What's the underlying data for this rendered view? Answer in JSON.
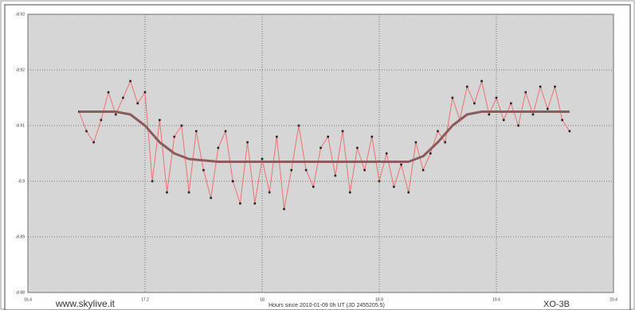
{
  "chart_data": {
    "type": "line",
    "xlabel": "Hours since 2010-01-09 0h UT (JD 2455205.5)",
    "source": "www.skylive.it",
    "label": "XO-3B",
    "xlim": [
      16.4,
      20.4
    ],
    "xticks": [
      16.4,
      17.2,
      18,
      18.8,
      19.6,
      20.4
    ],
    "ylim": [
      -8.88,
      -8.93
    ],
    "yticks": [
      -8.93,
      -8.92,
      -8.91,
      -8.9,
      -8.89,
      -8.88
    ],
    "grid": true,
    "series": [
      {
        "color": "#f07070",
        "marker_color": "#222222",
        "markers": true,
        "x": [
          16.75,
          16.8,
          16.85,
          16.9,
          16.95,
          17,
          17.05,
          17.1,
          17.15,
          17.2,
          17.25,
          17.3,
          17.35,
          17.4,
          17.45,
          17.5,
          17.55,
          17.6,
          17.65,
          17.7,
          17.75,
          17.8,
          17.85,
          17.9,
          17.95,
          18,
          18.05,
          18.1,
          18.15,
          18.2,
          18.25,
          18.3,
          18.35,
          18.4,
          18.45,
          18.5,
          18.55,
          18.6,
          18.65,
          18.7,
          18.75,
          18.8,
          18.85,
          18.9,
          18.95,
          19,
          19.05,
          19.1,
          19.15,
          19.2,
          19.25,
          19.3,
          19.35,
          19.4,
          19.45,
          19.5,
          19.55,
          19.6,
          19.65,
          19.7,
          19.75,
          19.8,
          19.85,
          19.9,
          19.95,
          20,
          20.05,
          20.1
        ],
        "values": [
          -8.9125,
          -8.909,
          -8.907,
          -8.911,
          -8.916,
          -8.912,
          -8.915,
          -8.918,
          -8.914,
          -8.916,
          -8.9,
          -8.911,
          -8.898,
          -8.908,
          -8.91,
          -8.898,
          -8.909,
          -8.902,
          -8.897,
          -8.906,
          -8.909,
          -8.9,
          -8.896,
          -8.907,
          -8.896,
          -8.904,
          -8.898,
          -8.908,
          -8.895,
          -8.902,
          -8.91,
          -8.902,
          -8.899,
          -8.906,
          -8.908,
          -8.901,
          -8.909,
          -8.898,
          -8.906,
          -8.902,
          -8.908,
          -8.9,
          -8.905,
          -8.899,
          -8.903,
          -8.898,
          -8.907,
          -8.902,
          -8.905,
          -8.909,
          -8.907,
          -8.915,
          -8.911,
          -8.917,
          -8.914,
          -8.918,
          -8.912,
          -8.915,
          -8.911,
          -8.914,
          -8.91,
          -8.916,
          -8.912,
          -8.917,
          -8.913,
          -8.917,
          -8.911,
          -8.909
        ]
      },
      {
        "color": "#8c5b5b",
        "markers": false,
        "x": [
          16.75,
          17,
          17.1,
          17.2,
          17.3,
          17.4,
          17.5,
          17.7,
          18,
          18.5,
          18.8,
          19,
          19.1,
          19.2,
          19.3,
          19.4,
          19.5,
          19.6,
          20.1
        ],
        "values": [
          -8.9125,
          -8.9125,
          -8.912,
          -8.91,
          -8.907,
          -8.905,
          -8.904,
          -8.9035,
          -8.9035,
          -8.9035,
          -8.9035,
          -8.9035,
          -8.9045,
          -8.907,
          -8.91,
          -8.912,
          -8.9125,
          -8.9125,
          -8.9125
        ]
      }
    ]
  }
}
